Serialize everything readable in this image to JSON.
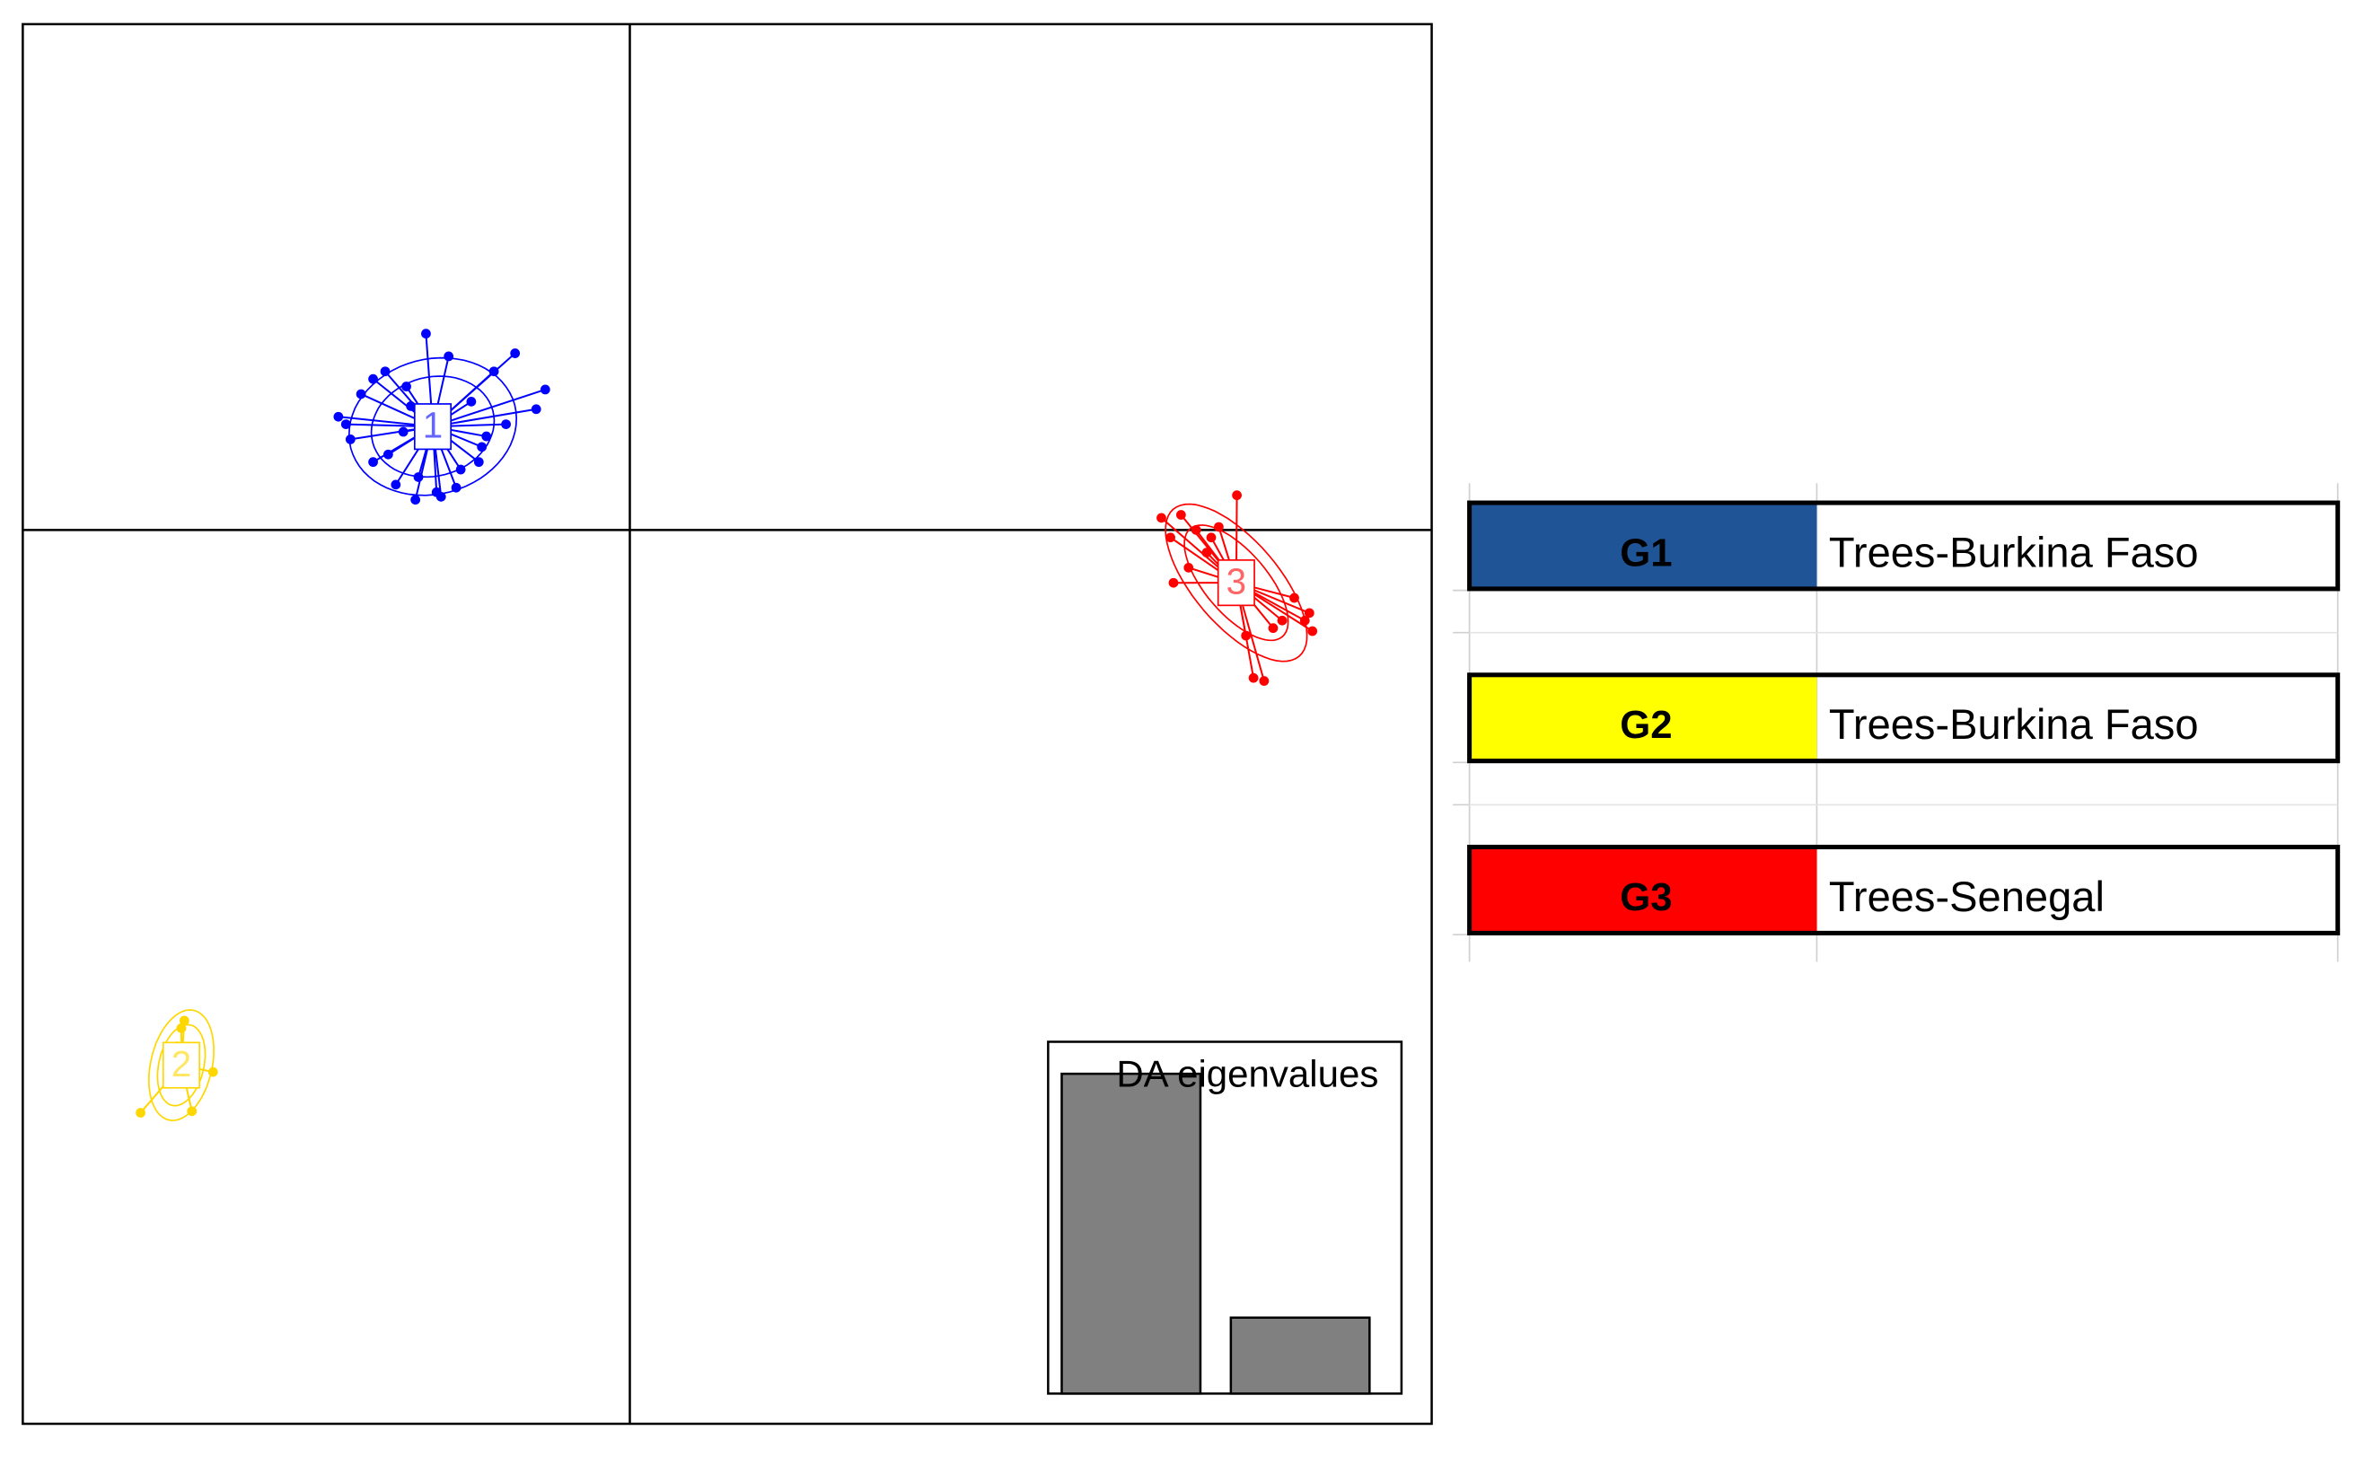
{
  "chart_data": {
    "type": "scatter",
    "xlim": [
      -4.02,
      5.31
    ],
    "ylim": [
      -5.92,
      3.35
    ],
    "series": [
      {
        "name": "1",
        "color": "#0000ff",
        "x": [
          -1.93,
          -1.85,
          -1.78,
          -1.7,
          -1.62,
          -1.55,
          -1.48,
          -1.42,
          -1.35,
          -1.28,
          -1.2,
          -1.12,
          -1.05,
          -0.98,
          -0.9,
          -0.82,
          -0.76,
          -0.56,
          -0.62,
          -1.6,
          -1.4,
          -1.25,
          -1.5,
          -1.88,
          -1.15,
          -1.0,
          -1.7,
          -1.3,
          -1.45,
          -0.95
        ],
        "y": [
          0.75,
          0.6,
          0.9,
          0.45,
          1.05,
          0.3,
          0.95,
          0.2,
          1.3,
          0.25,
          1.15,
          0.4,
          0.85,
          0.55,
          1.05,
          0.7,
          1.17,
          0.93,
          0.8,
          0.5,
          0.35,
          0.22,
          0.65,
          0.7,
          0.28,
          0.45,
          1.0,
          0.6,
          0.82,
          0.62
        ]
      },
      {
        "name": "2",
        "color": "#ffd700",
        "x": [
          -2.95,
          -2.97,
          -3.24,
          -2.76,
          -2.9,
          -3.0
        ],
        "y": [
          -3.25,
          -3.3,
          -3.86,
          -3.59,
          -3.85,
          -3.42
        ]
      },
      {
        "name": "3",
        "color": "#ff0000",
        "x": [
          3.52,
          3.58,
          3.65,
          3.7,
          3.75,
          3.82,
          3.9,
          3.96,
          4.02,
          4.08,
          4.13,
          4.2,
          4.26,
          4.32,
          4.4,
          4.47,
          4.52,
          3.6,
          3.85,
          4.1,
          4.5
        ],
        "y": [
          0.08,
          -0.05,
          0.1,
          -0.25,
          0.0,
          -0.15,
          0.02,
          -0.42,
          0.23,
          -0.7,
          -0.98,
          -1.0,
          -0.65,
          -0.6,
          -0.45,
          -0.6,
          -0.67,
          -0.35,
          -0.05,
          -0.3,
          -0.55
        ]
      }
    ],
    "inset": {
      "type": "bar",
      "title": "DA eigenvalues",
      "values": [
        80,
        19
      ],
      "ylim": [
        0,
        88
      ],
      "color": "#808080"
    }
  },
  "legend": {
    "rows": [
      {
        "group": "G1",
        "color": "#1f5597",
        "label": "Trees-Burkina Faso"
      },
      {
        "group": "G2",
        "color": "#ffff00",
        "label": "Trees-Burkina Faso"
      },
      {
        "group": "G3",
        "color": "#ff0000",
        "label": "Trees-Senegal"
      }
    ]
  }
}
